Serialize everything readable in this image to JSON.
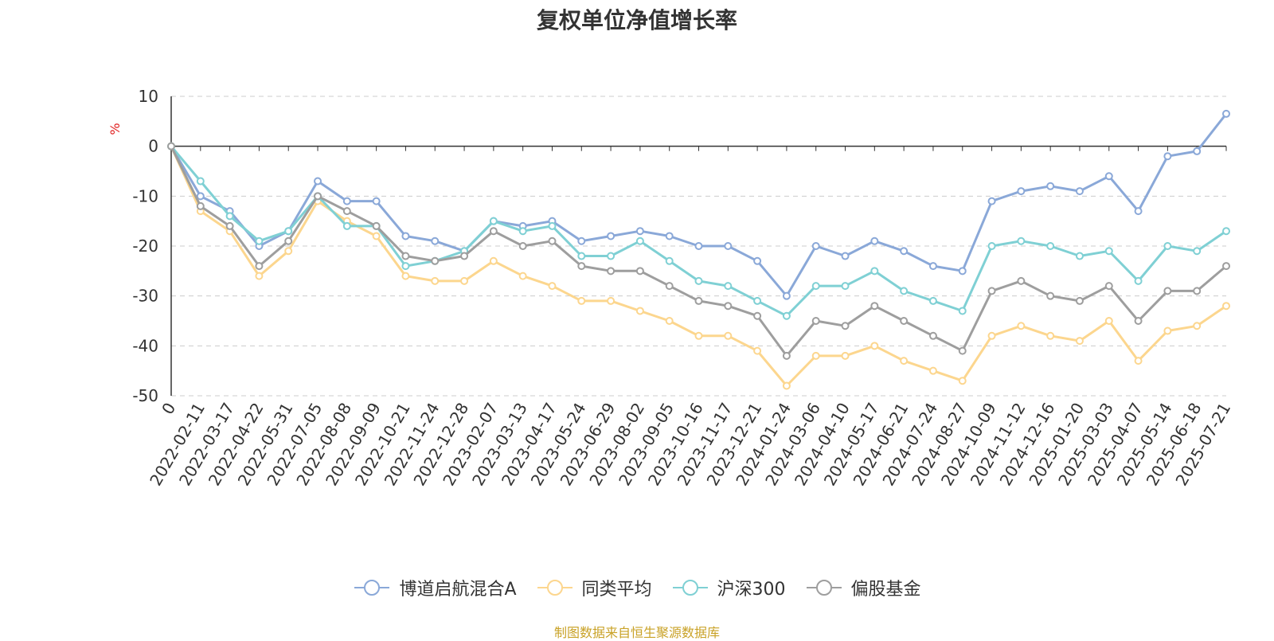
{
  "chart_data": {
    "type": "line",
    "title": "复权单位净值增长率",
    "ylabel": "%",
    "ylim": [
      -50,
      10
    ],
    "yticks": [
      10,
      0,
      -10,
      -20,
      -30,
      -40,
      -50
    ],
    "grid": true,
    "legend_position": "bottom",
    "x": [
      "0",
      "2022-02-11",
      "2022-03-17",
      "2022-04-22",
      "2022-05-31",
      "2022-07-05",
      "2022-08-08",
      "2022-09-09",
      "2022-10-21",
      "2022-11-24",
      "2022-12-28",
      "2023-02-07",
      "2023-03-13",
      "2023-04-17",
      "2023-05-24",
      "2023-06-29",
      "2023-08-02",
      "2023-09-05",
      "2023-10-16",
      "2023-11-17",
      "2023-12-21",
      "2024-01-24",
      "2024-03-06",
      "2024-04-10",
      "2024-05-17",
      "2024-06-21",
      "2024-07-24",
      "2024-08-27",
      "2024-10-09",
      "2024-11-12",
      "2024-12-16",
      "2025-01-20",
      "2025-03-03",
      "2025-04-07",
      "2025-05-14",
      "2025-06-18",
      "2025-07-21"
    ],
    "series": [
      {
        "name": "博道启航混合A",
        "color": "#8aa8d8",
        "values": [
          0,
          -10,
          -13,
          -20,
          -17,
          -7,
          -11,
          -11,
          -18,
          -19,
          -21,
          -15,
          -16,
          -15,
          -19,
          -18,
          -17,
          -18,
          -20,
          -20,
          -23,
          -30,
          -20,
          -22,
          -19,
          -21,
          -24,
          -25,
          -11,
          -9,
          -8,
          -9,
          -6,
          -13,
          -2,
          -1,
          6.5
        ]
      },
      {
        "name": "同类平均",
        "color": "#fcd68e",
        "values": [
          0,
          -13,
          -17,
          -26,
          -21,
          -11,
          -15,
          -18,
          -26,
          -27,
          -27,
          -23,
          -26,
          -28,
          -31,
          -31,
          -33,
          -35,
          -38,
          -38,
          -41,
          -48,
          -42,
          -42,
          -40,
          -43,
          -45,
          -47,
          -38,
          -36,
          -38,
          -39,
          -35,
          -43,
          -37,
          -36,
          -32
        ]
      },
      {
        "name": "沪深300",
        "color": "#7fd0d4",
        "values": [
          0,
          -7,
          -14,
          -19,
          -17,
          -10,
          -16,
          -16,
          -24,
          -23,
          -21,
          -15,
          -17,
          -16,
          -22,
          -22,
          -19,
          -23,
          -27,
          -28,
          -31,
          -34,
          -28,
          -28,
          -25,
          -29,
          -31,
          -33,
          -20,
          -19,
          -20,
          -22,
          -21,
          -27,
          -20,
          -21,
          -17
        ]
      },
      {
        "name": "偏股基金",
        "color": "#9e9e9e",
        "values": [
          0,
          -12,
          -16,
          -24,
          -19,
          -10,
          -13,
          -16,
          -22,
          -23,
          -22,
          -17,
          -20,
          -19,
          -24,
          -25,
          -25,
          -28,
          -31,
          -32,
          -34,
          -42,
          -35,
          -36,
          -32,
          -35,
          -38,
          -41,
          -29,
          -27,
          -30,
          -31,
          -28,
          -35,
          -29,
          -29,
          -24
        ]
      }
    ],
    "source": "制图数据来自恒生聚源数据库"
  }
}
